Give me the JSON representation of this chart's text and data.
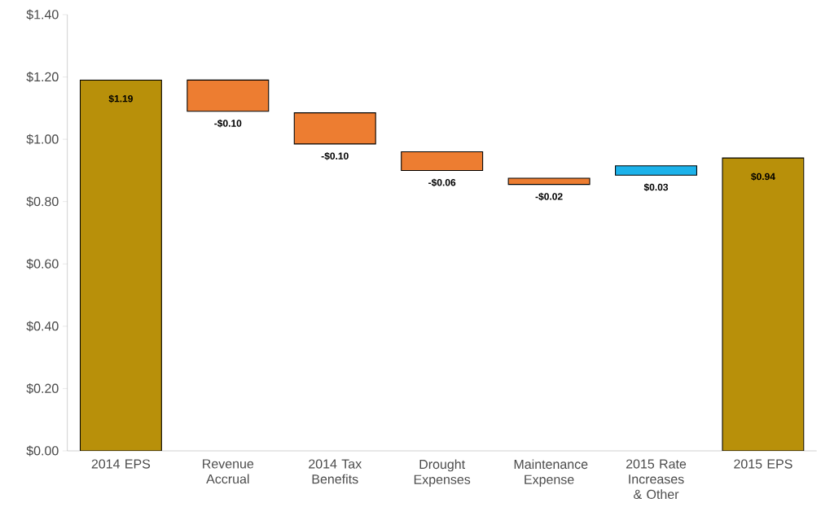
{
  "chart_data": {
    "type": "bar",
    "categories": [
      "2014 EPS",
      "Revenue Accrual",
      "2014 Tax Benefits",
      "Drought Expenses",
      "Maintenance Expense",
      "2015 Rate Increases & Other",
      "2015 EPS"
    ],
    "values": [
      1.19,
      -0.1,
      -0.1,
      -0.06,
      -0.02,
      0.03,
      0.94
    ],
    "base": [
      0,
      1.19,
      1.085,
      0.96,
      0.875,
      0.885,
      0
    ],
    "colors": [
      "#b8900a",
      "#ed7d31",
      "#ed7d31",
      "#ed7d31",
      "#ed7d31",
      "#1cb2ea",
      "#b8900a"
    ],
    "value_labels": [
      "$1.19",
      "-$0.10",
      "-$0.10",
      "-$0.06",
      "-$0.02",
      "$0.03",
      "$0.94"
    ],
    "ylim": [
      0,
      1.4
    ],
    "yticks": [
      {
        "value": 0,
        "label": "$0.00"
      },
      {
        "value": 0.2,
        "label": "$0.20"
      },
      {
        "value": 0.4,
        "label": "$0.40"
      },
      {
        "value": 0.6,
        "label": "$0.60"
      },
      {
        "value": 0.8,
        "label": "$0.80"
      },
      {
        "value": 1.0,
        "label": "$1.00"
      },
      {
        "value": 1.2,
        "label": "$1.20"
      },
      {
        "value": 1.4,
        "label": "$1.40"
      }
    ]
  }
}
